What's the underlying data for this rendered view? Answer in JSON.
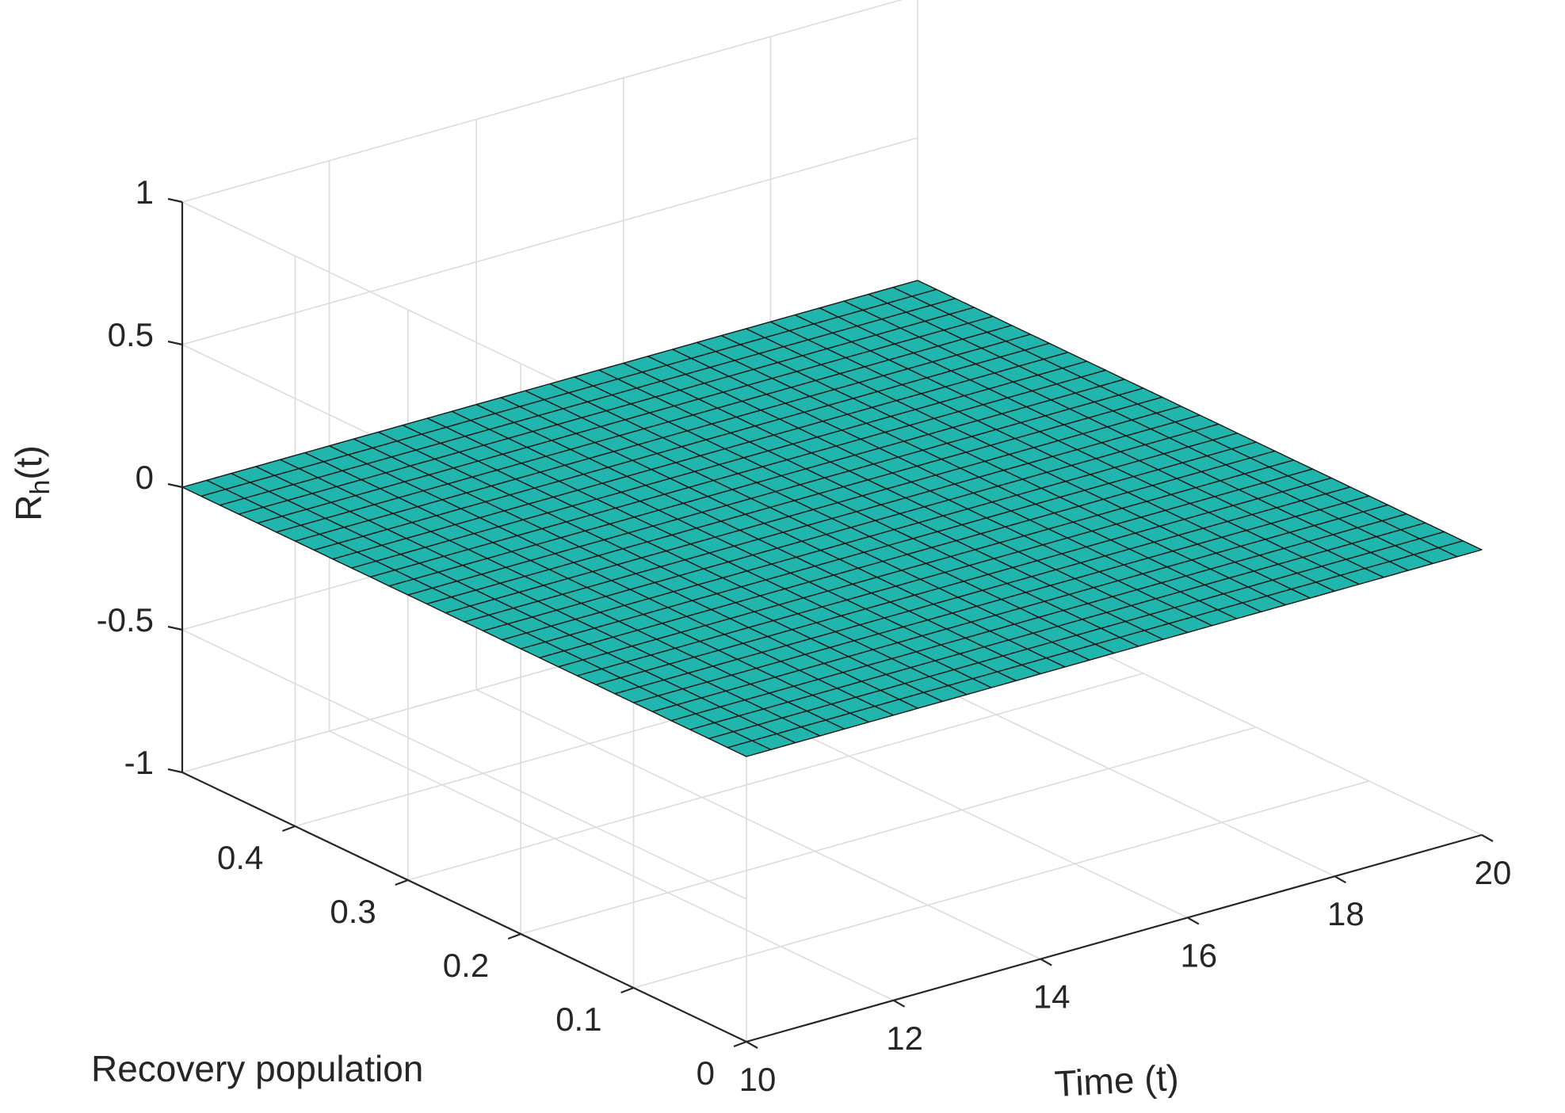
{
  "chart_data": {
    "type": "surface",
    "xlabel": "Time (t)",
    "ylabel": "Recovery population",
    "zlabel": {
      "base": "R",
      "sub": "h",
      "suffix": "(t)"
    },
    "xlim": [
      10,
      20
    ],
    "ylim": [
      0,
      0.5
    ],
    "zlim": [
      -1,
      1
    ],
    "x_ticks": [
      "10",
      "12",
      "14",
      "16",
      "18",
      "20"
    ],
    "y_ticks": [
      "0",
      "0.1",
      "0.2",
      "0.3",
      "0.4"
    ],
    "z_ticks": [
      "-1",
      "-0.5",
      "0",
      "0.5",
      "1"
    ],
    "grid": true,
    "surface": {
      "x_range": [
        10,
        20
      ],
      "y_range": [
        0,
        0.5
      ],
      "z_value": 0,
      "divisions": 30
    },
    "colors": {
      "surface": "#20b6ad",
      "edges": "#1a1a1a",
      "grid": "#dcdcdc",
      "axes": "#262626"
    }
  }
}
